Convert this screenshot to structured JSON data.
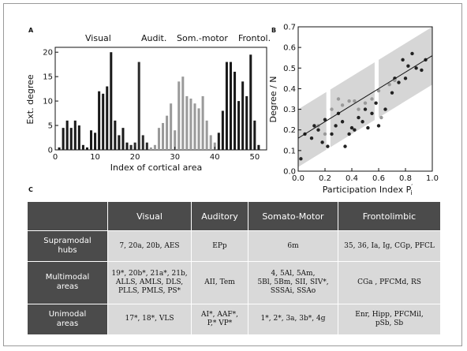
{
  "panels": {
    "a": "A",
    "b": "B",
    "c": "C"
  },
  "panel_a": {
    "groups": [
      "Visual",
      "Audit.",
      "Som.-motor",
      "Frontol."
    ],
    "ylabel": "Ext. degree",
    "xlabel": "Index of cortical area",
    "xticks": [
      "0",
      "10",
      "20",
      "30",
      "40",
      "50"
    ],
    "yticks": [
      "0",
      "5",
      "10",
      "15",
      "20"
    ]
  },
  "panel_b": {
    "ylabel": "Degree / N",
    "xlabel_main": "Participation Index P",
    "xlabel_sub": "i",
    "xlabel_prime": "′",
    "xticks": [
      "0.0",
      "0.2",
      "0.4",
      "0.6",
      "0.8",
      "1.0"
    ],
    "yticks": [
      "0.0",
      "0.1",
      "0.2",
      "0.3",
      "0.4",
      "0.5",
      "0.6",
      "0.7"
    ]
  },
  "chart_data": [
    {
      "type": "bar",
      "title": "",
      "xlabel": "Index of cortical area",
      "ylabel": "Ext. degree",
      "xlim": [
        0,
        53
      ],
      "ylim": [
        0,
        21
      ],
      "series": [
        {
          "group": "Visual",
          "color": "#1a1a1a",
          "x": [
            1,
            2,
            3,
            4,
            5,
            6,
            7,
            8,
            9,
            10,
            11,
            12,
            13,
            14,
            15,
            16,
            17,
            18
          ],
          "values": [
            0.5,
            4.5,
            6,
            4.5,
            6,
            5,
            1,
            0.5,
            4,
            3.5,
            12,
            11.5,
            13,
            20,
            6,
            3,
            4.5,
            1.5
          ]
        },
        {
          "group": "Audit.",
          "color": "#2b2b2b",
          "x": [
            19,
            20,
            21,
            22,
            23
          ],
          "values": [
            1,
            1.5,
            18,
            3,
            1.5
          ]
        },
        {
          "group": "Som.-motor",
          "color": "#9a9a9a",
          "x": [
            24,
            25,
            26,
            27,
            28,
            29,
            30,
            31,
            32,
            33,
            34,
            35,
            36,
            37,
            38,
            39,
            40
          ],
          "values": [
            0.5,
            1,
            4.5,
            5.5,
            7,
            9.5,
            4,
            14,
            15,
            11,
            10.5,
            9.5,
            8.5,
            11,
            6,
            3,
            1.5
          ]
        },
        {
          "group": "Frontol.",
          "color": "#1a1a1a",
          "x": [
            41,
            42,
            43,
            44,
            45,
            46,
            47,
            48,
            49,
            50,
            51
          ],
          "values": [
            3.5,
            8,
            18,
            18,
            16,
            10,
            14,
            11,
            19.5,
            6,
            1
          ]
        }
      ]
    },
    {
      "type": "scatter",
      "title": "",
      "xlabel": "Participation Index P′i",
      "ylabel": "Degree / N",
      "xlim": [
        0,
        1
      ],
      "ylim": [
        0,
        0.7
      ],
      "band_color": "#d6d6d6",
      "fit_line": {
        "x": [
          0,
          1
        ],
        "y": [
          0.16,
          0.56
        ]
      },
      "series": [
        {
          "name": "",
          "color": "#222222",
          "points": [
            [
              0.02,
              0.06
            ],
            [
              0.05,
              0.18
            ],
            [
              0.1,
              0.16
            ],
            [
              0.12,
              0.22
            ],
            [
              0.15,
              0.2
            ],
            [
              0.18,
              0.14
            ],
            [
              0.2,
              0.25
            ],
            [
              0.22,
              0.12
            ],
            [
              0.25,
              0.18
            ],
            [
              0.28,
              0.22
            ],
            [
              0.3,
              0.28
            ],
            [
              0.33,
              0.24
            ],
            [
              0.35,
              0.12
            ],
            [
              0.38,
              0.18
            ],
            [
              0.4,
              0.21
            ],
            [
              0.42,
              0.2
            ],
            [
              0.45,
              0.26
            ],
            [
              0.48,
              0.24
            ],
            [
              0.5,
              0.3
            ],
            [
              0.52,
              0.21
            ],
            [
              0.55,
              0.28
            ],
            [
              0.58,
              0.33
            ],
            [
              0.6,
              0.22
            ],
            [
              0.65,
              0.3
            ],
            [
              0.7,
              0.38
            ],
            [
              0.72,
              0.45
            ],
            [
              0.75,
              0.43
            ],
            [
              0.78,
              0.54
            ],
            [
              0.8,
              0.45
            ],
            [
              0.82,
              0.51
            ],
            [
              0.85,
              0.57
            ],
            [
              0.88,
              0.5
            ],
            [
              0.92,
              0.49
            ],
            [
              0.95,
              0.54
            ]
          ]
        },
        {
          "name": "",
          "color": "#9a9a9a",
          "points": [
            [
              0.15,
              0.22
            ],
            [
              0.2,
              0.18
            ],
            [
              0.25,
              0.3
            ],
            [
              0.3,
              0.35
            ],
            [
              0.33,
              0.32
            ],
            [
              0.38,
              0.34
            ],
            [
              0.42,
              0.34
            ],
            [
              0.45,
              0.3
            ],
            [
              0.5,
              0.33
            ],
            [
              0.55,
              0.35
            ],
            [
              0.6,
              0.39
            ],
            [
              0.62,
              0.26
            ],
            [
              0.68,
              0.42
            ],
            [
              0.72,
              0.44
            ]
          ]
        }
      ]
    }
  ],
  "table": {
    "headers": [
      "",
      "Visual",
      "Auditory",
      "Somato-Motor",
      "Frontolimbic"
    ],
    "rows": [
      {
        "label": [
          "Supramodal",
          "hubs"
        ],
        "cells": [
          [
            "7, 20a, 20b, AES"
          ],
          [
            "EPp"
          ],
          [
            "6m"
          ],
          [
            "35, 36, Ia, Ig, CGp, PFCL"
          ]
        ]
      },
      {
        "label": [
          "Multimodal",
          "areas"
        ],
        "cells": [
          [
            "19*, 20b*, 21a*, 21b,",
            "ALLS, AMLS, DLS,",
            "PLLS, PMLS, PS*"
          ],
          [
            "AII, Tem"
          ],
          [
            "4, 5Al, 5Am,",
            "5Bl, 5Bm, SII, SIV*,",
            "SSSAi, SSAo"
          ],
          [
            "CGa , PFCMd, RS"
          ]
        ]
      },
      {
        "label": [
          "Unimodal",
          "areas"
        ],
        "cells": [
          [
            "17*, 18*, VLS"
          ],
          [
            "AI*, AAF*,",
            "P,* VP*"
          ],
          [
            "1*, 2*, 3a, 3b*, 4g"
          ],
          [
            "Enr, Hipp, PFCMil,",
            "pSb, Sb"
          ]
        ]
      }
    ]
  }
}
